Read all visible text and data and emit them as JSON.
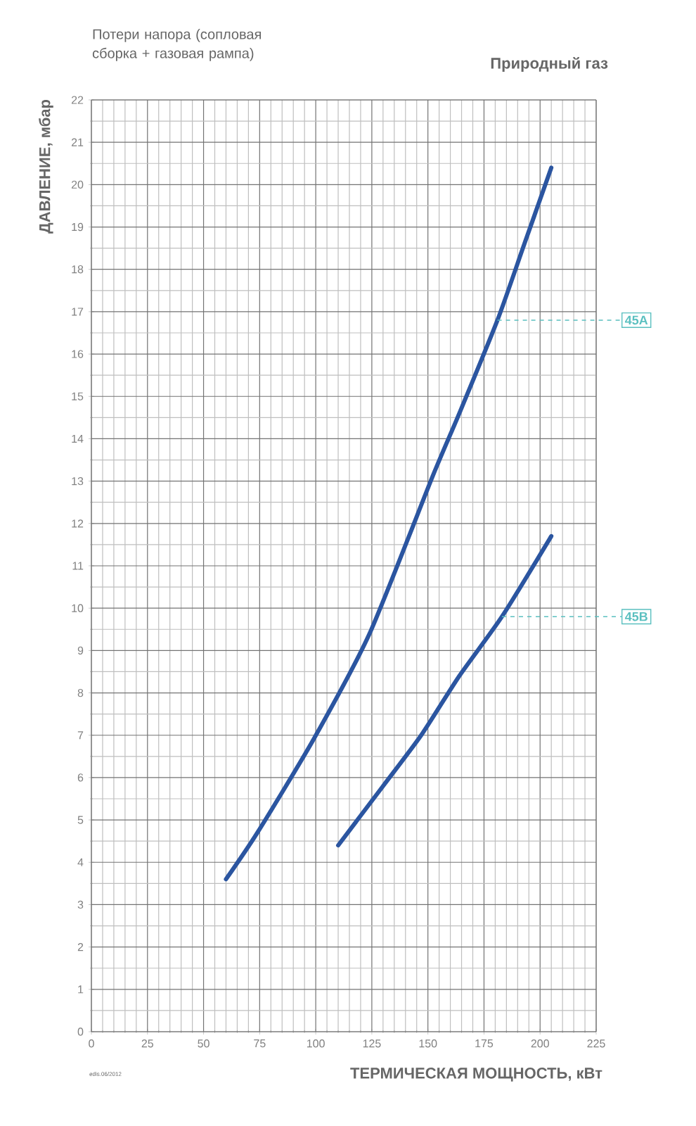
{
  "chart_data": {
    "type": "line",
    "title": "Потери напора (сопловая сборка + газовая рампа)",
    "subtitle": "Природный газ",
    "xlabel": "ТЕРМИЧЕСКАЯ МОЩНОСТЬ, кВт",
    "ylabel": "ДАВЛЕНИЕ, мбар",
    "series": [
      {
        "color": "#2b55a0",
        "x": [
          60,
          74,
          99,
          124,
          152,
          164,
          181,
          193,
          205
        ],
        "values": [
          3.6,
          4.7,
          6.9,
          9.4,
          13.1,
          14.6,
          16.8,
          18.6,
          20.4
        ]
      },
      {
        "color": "#2b55a0",
        "x": [
          110,
          130,
          147,
          164,
          183,
          205
        ],
        "values": [
          4.4,
          5.8,
          7.0,
          8.4,
          9.8,
          11.7
        ]
      }
    ],
    "xlim": [
      0,
      225
    ],
    "ylim": [
      0,
      22
    ],
    "xticks": [
      0,
      25,
      50,
      75,
      100,
      125,
      150,
      175,
      200,
      225
    ],
    "yticks": [
      0,
      1,
      2,
      3,
      4,
      5,
      6,
      7,
      8,
      9,
      10,
      11,
      12,
      13,
      14,
      15,
      16,
      17,
      18,
      19,
      20,
      21,
      22
    ],
    "grid": true,
    "marker": "none",
    "line_style": "solid",
    "ref_lines": [
      {
        "axis": "y",
        "value": 16.8,
        "label": "45A",
        "color": "#5bc0c0",
        "line_style": "dashed"
      },
      {
        "axis": "y",
        "value": 9.8,
        "label": "45B",
        "color": "#5bc0c0",
        "line_style": "dashed"
      }
    ],
    "annotations": [
      "edis.06/2012"
    ]
  }
}
